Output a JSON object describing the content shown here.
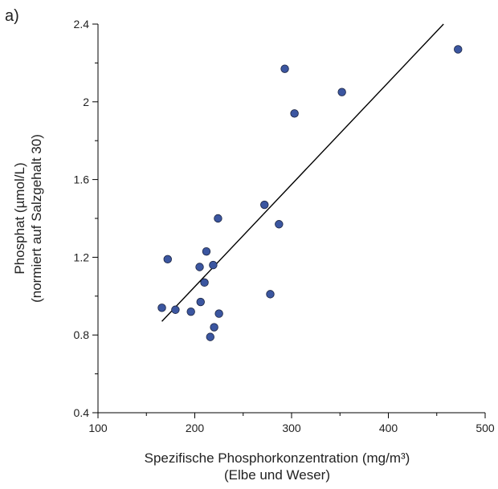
{
  "chart_data": {
    "type": "scatter",
    "panel_label": "a)",
    "xlabel": [
      "Spezifische Phosphorkonzentration (mg/m³)",
      "(Elbe und Weser)"
    ],
    "ylabel": [
      "Phosphat (µmol/L)",
      "(normiert auf Salzgehalt 30)"
    ],
    "x": [
      166,
      172,
      180,
      196,
      205,
      206,
      210,
      212,
      216,
      219,
      220,
      224,
      225,
      272,
      278,
      287,
      293,
      303,
      352,
      472
    ],
    "y": [
      0.94,
      1.19,
      0.93,
      0.92,
      1.15,
      0.97,
      1.07,
      1.23,
      0.79,
      1.16,
      0.84,
      1.4,
      0.91,
      1.47,
      1.01,
      1.37,
      2.17,
      1.94,
      2.05,
      2.27
    ],
    "color": "#3b56a0",
    "trendline": {
      "x": [
        166,
        457
      ],
      "y": [
        0.87,
        2.4
      ],
      "color": "#000000"
    },
    "xlim": [
      100,
      500
    ],
    "xticks": [
      100,
      200,
      300,
      400,
      500
    ],
    "xminor": [
      150,
      250,
      350,
      450
    ],
    "ylim": [
      0.4,
      2.4
    ],
    "yticks": [
      0.4,
      0.8,
      1.2,
      1.6,
      2,
      2.4
    ],
    "yminor": [
      0.6,
      1.0,
      1.4,
      1.8,
      2.2
    ]
  }
}
